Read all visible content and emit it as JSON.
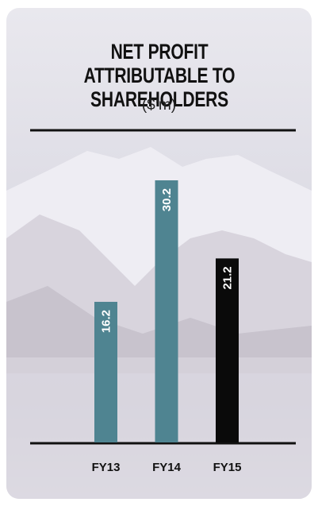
{
  "chart_data": {
    "type": "bar",
    "title": "NET PROFIT ATTRIBUTABLE TO SHAREHOLDERS",
    "subtitle": "($’m)",
    "categories": [
      "FY13",
      "FY14",
      "FY15"
    ],
    "values": [
      16.2,
      30.2,
      21.2
    ],
    "colors": [
      "#4f8491",
      "#4f8491",
      "#0a0a0a"
    ]
  }
}
